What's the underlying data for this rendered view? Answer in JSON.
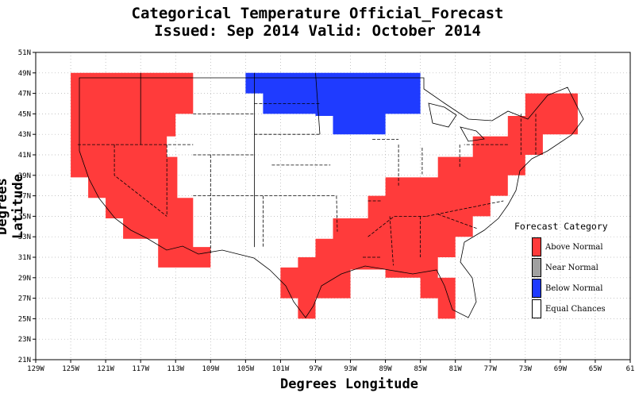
{
  "title_line1": "Categorical Temperature Official_Forecast",
  "title_line2": "Issued: Sep 2014 Valid: October 2014",
  "x_axis_title": "Degrees Longitude",
  "y_axis_title": "Degrees Latitude",
  "x_tick_labels": [
    "129W",
    "125W",
    "121W",
    "117W",
    "113W",
    "109W",
    "105W",
    "101W",
    "97W",
    "93W",
    "89W",
    "85W",
    "81W",
    "77W",
    "73W",
    "69W",
    "65W",
    "61"
  ],
  "y_tick_labels": [
    "21N",
    "23N",
    "25N",
    "27N",
    "29N",
    "31N",
    "33N",
    "35N",
    "37N",
    "39N",
    "41N",
    "43N",
    "45N",
    "47N",
    "49N",
    "51N"
  ],
  "colors": {
    "above_normal": "#ff3b3b",
    "near_normal": "#a0a0a0",
    "below_normal": "#1f3bff",
    "equal_chances": "#ffffff",
    "grid": "#b0b0b0"
  },
  "legend": {
    "title": "Forecast Category",
    "items": [
      {
        "label": "Above Normal",
        "color": "#ff3b3b"
      },
      {
        "label": "Near Normal",
        "color": "#a0a0a0"
      },
      {
        "label": "Below Normal",
        "color": "#1f3bff"
      },
      {
        "label": "Equal Chances",
        "color": "#ffffff"
      }
    ]
  },
  "forecast_regions": [
    {
      "category": "Above Normal",
      "name": "west",
      "lonlat": [
        [
          -125,
          49
        ],
        [
          -111,
          49
        ],
        [
          -111,
          45
        ],
        [
          -113,
          45
        ],
        [
          -113,
          42.8
        ],
        [
          -114,
          42.8
        ],
        [
          -114,
          40.8
        ],
        [
          -112.8,
          40.8
        ],
        [
          -112.8,
          36.8
        ],
        [
          -111,
          36.8
        ],
        [
          -111,
          34.8
        ],
        [
          -111,
          32
        ],
        [
          -109,
          32
        ],
        [
          -109,
          30
        ],
        [
          -115,
          30
        ],
        [
          -115,
          32.8
        ],
        [
          -119,
          32.8
        ],
        [
          -119,
          34.8
        ],
        [
          -121,
          34.8
        ],
        [
          -121,
          36.8
        ],
        [
          -123,
          36.8
        ],
        [
          -123,
          38.8
        ],
        [
          -125,
          38.8
        ]
      ]
    },
    {
      "category": "Above Normal",
      "name": "south-east",
      "lonlat": [
        [
          -101,
          29
        ],
        [
          -101,
          30
        ],
        [
          -99,
          30
        ],
        [
          -99,
          31
        ],
        [
          -97,
          31
        ],
        [
          -97,
          32.8
        ],
        [
          -95,
          32.8
        ],
        [
          -95,
          34.8
        ],
        [
          -91,
          34.8
        ],
        [
          -91,
          37
        ],
        [
          -89,
          37
        ],
        [
          -89,
          38.8
        ],
        [
          -85,
          38.8
        ],
        [
          -83,
          38.8
        ],
        [
          -83,
          40.8
        ],
        [
          -81,
          40.8
        ],
        [
          -79,
          40.8
        ],
        [
          -79,
          42.8
        ],
        [
          -77,
          42.8
        ],
        [
          -75,
          42.8
        ],
        [
          -75,
          44.8
        ],
        [
          -73,
          44.8
        ],
        [
          -73,
          47
        ],
        [
          -71,
          47
        ],
        [
          -69,
          47
        ],
        [
          -67,
          47
        ],
        [
          -67,
          43
        ],
        [
          -71,
          43
        ],
        [
          -71,
          41
        ],
        [
          -73,
          41
        ],
        [
          -73,
          39
        ],
        [
          -75,
          39
        ],
        [
          -75,
          37
        ],
        [
          -77,
          37
        ],
        [
          -77,
          35
        ],
        [
          -79,
          35
        ],
        [
          -79,
          33
        ],
        [
          -81,
          33
        ],
        [
          -81,
          31
        ],
        [
          -83,
          31
        ],
        [
          -83,
          29
        ],
        [
          -81,
          29
        ],
        [
          -81,
          25
        ],
        [
          -83,
          25
        ],
        [
          -83,
          27
        ],
        [
          -85,
          27
        ],
        [
          -85,
          29
        ],
        [
          -89,
          29
        ],
        [
          -89,
          29.8
        ],
        [
          -93,
          29.8
        ],
        [
          -93,
          27
        ],
        [
          -97,
          27
        ],
        [
          -97,
          25
        ],
        [
          -99,
          25
        ],
        [
          -99,
          27
        ],
        [
          -101,
          27
        ]
      ]
    },
    {
      "category": "Below Normal",
      "name": "north-central",
      "lonlat": [
        [
          -105,
          49
        ],
        [
          -85,
          49
        ],
        [
          -85,
          45
        ],
        [
          -89,
          45
        ],
        [
          -89,
          43
        ],
        [
          -95,
          43
        ],
        [
          -95,
          44.8
        ],
        [
          -97,
          44.8
        ],
        [
          -97,
          45
        ],
        [
          -103,
          45
        ],
        [
          -103,
          47
        ],
        [
          -105,
          47
        ]
      ]
    }
  ]
}
